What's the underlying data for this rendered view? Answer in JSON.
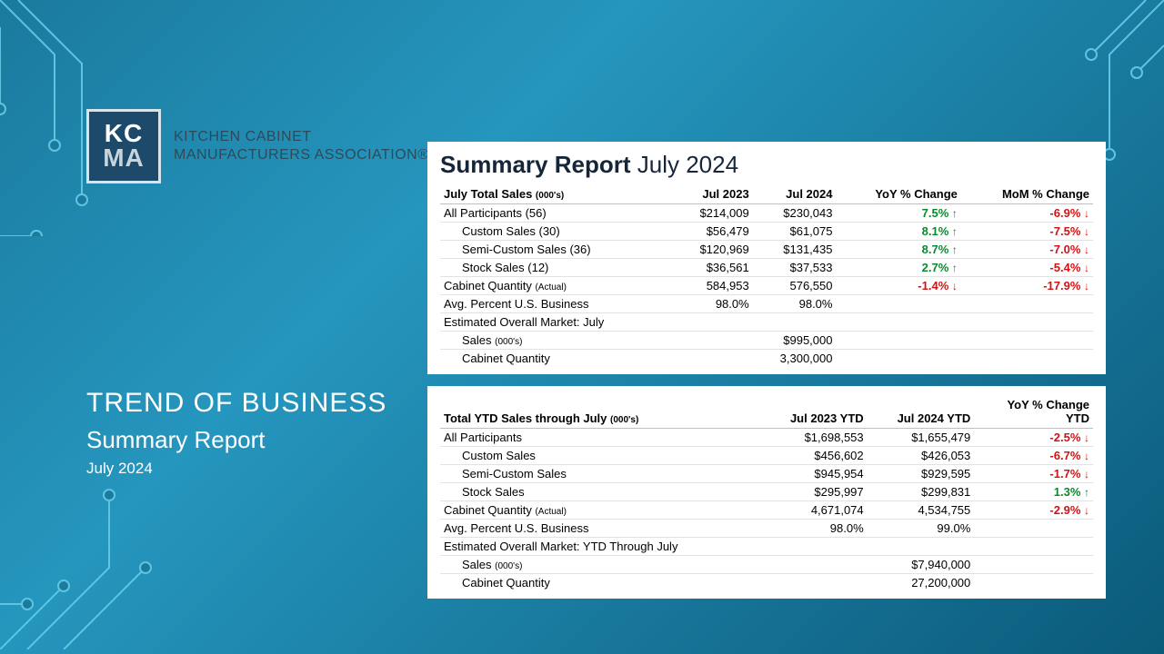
{
  "colors": {
    "bg_gradient_from": "#1b7a9e",
    "bg_gradient_mid": "#2596be",
    "bg_gradient_to": "#0b5a7a",
    "circuit_stroke": "#5ec5e0",
    "panel_bg": "#ffffff",
    "text_dark": "#16263a",
    "up": "#0a8a2f",
    "down": "#d01414",
    "grid": "#e2e2e2"
  },
  "logo": {
    "abbr_top": "KC",
    "abbr_bottom": "MA",
    "line1": "KITCHEN CABINET",
    "line2": "MANUFACTURERS ASSOCIATION",
    "reg": "®"
  },
  "title": {
    "main": "TREND OF BUSINESS",
    "sub": "Summary Report",
    "date": "July 2024"
  },
  "report": {
    "title_bold": "Summary Report",
    "title_light": "July 2024"
  },
  "table1": {
    "h_sec": "July Total Sales",
    "h_sec_small": "(000's)",
    "h_c1": "Jul 2023",
    "h_c2": "Jul 2024",
    "h_c3": "YoY % Change",
    "h_c4": "MoM % Change",
    "rows": [
      {
        "label": "All Participants (56)",
        "indent": 0,
        "v1": "$214,009",
        "v2": "$230,043",
        "yoy": "7.5%",
        "yoy_dir": "up",
        "mom": "-6.9%",
        "mom_dir": "down"
      },
      {
        "label": "Custom Sales (30)",
        "indent": 1,
        "v1": "$56,479",
        "v2": "$61,075",
        "yoy": "8.1%",
        "yoy_dir": "up",
        "mom": "-7.5%",
        "mom_dir": "down"
      },
      {
        "label": "Semi-Custom Sales (36)",
        "indent": 1,
        "v1": "$120,969",
        "v2": "$131,435",
        "yoy": "8.7%",
        "yoy_dir": "up",
        "mom": "-7.0%",
        "mom_dir": "down"
      },
      {
        "label": "Stock Sales (12)",
        "indent": 1,
        "v1": "$36,561",
        "v2": "$37,533",
        "yoy": "2.7%",
        "yoy_dir": "up",
        "mom": "-5.4%",
        "mom_dir": "down"
      },
      {
        "label": "Cabinet Quantity",
        "small": "(Actual)",
        "indent": 0,
        "v1": "584,953",
        "v2": "576,550",
        "yoy": "-1.4%",
        "yoy_dir": "down",
        "mom": "-17.9%",
        "mom_dir": "down"
      },
      {
        "label": "Avg. Percent U.S. Business",
        "indent": 0,
        "v1": "98.0%",
        "v2": "98.0%"
      },
      {
        "label": "Estimated Overall Market: July",
        "indent": 0
      },
      {
        "label": "Sales",
        "small": "(000's)",
        "indent": 1,
        "v2": "$995,000"
      },
      {
        "label": "Cabinet Quantity",
        "indent": 1,
        "v2": "3,300,000",
        "last": true
      }
    ]
  },
  "table2": {
    "h_sec": "Total YTD Sales through July",
    "h_sec_small": "(000's)",
    "h_c1": "Jul 2023 YTD",
    "h_c2": "Jul 2024 YTD",
    "h_c3a": "YoY % Change",
    "h_c3b": "YTD",
    "rows": [
      {
        "label": "All Participants",
        "indent": 0,
        "v1": "$1,698,553",
        "v2": "$1,655,479",
        "yoy": "-2.5%",
        "yoy_dir": "down"
      },
      {
        "label": "Custom Sales",
        "indent": 1,
        "v1": "$456,602",
        "v2": "$426,053",
        "yoy": "-6.7%",
        "yoy_dir": "down"
      },
      {
        "label": "Semi-Custom Sales",
        "indent": 1,
        "v1": "$945,954",
        "v2": "$929,595",
        "yoy": "-1.7%",
        "yoy_dir": "down"
      },
      {
        "label": "Stock Sales",
        "indent": 1,
        "v1": "$295,997",
        "v2": "$299,831",
        "yoy": "1.3%",
        "yoy_dir": "up"
      },
      {
        "label": "Cabinet Quantity",
        "small": "(Actual)",
        "indent": 0,
        "v1": "4,671,074",
        "v2": "4,534,755",
        "yoy": "-2.9%",
        "yoy_dir": "down"
      },
      {
        "label": "Avg. Percent U.S. Business",
        "indent": 0,
        "v1": "98.0%",
        "v2": "99.0%"
      },
      {
        "label": "Estimated Overall Market: YTD Through July",
        "indent": 0
      },
      {
        "label": "Sales",
        "small": "(000's)",
        "indent": 1,
        "v2": "$7,940,000"
      },
      {
        "label": "Cabinet Quantity",
        "indent": 1,
        "v2": "27,200,000",
        "last": true
      }
    ]
  }
}
